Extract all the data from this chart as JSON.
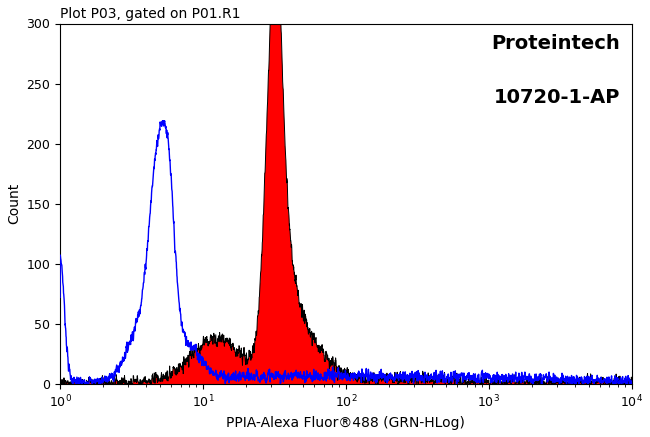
{
  "title": "Plot P03, gated on P01.R1",
  "xlabel": "PPIA-Alexa Fluor®488 (GRN-HLog)",
  "ylabel": "Count",
  "watermark_line1": "Proteintech",
  "watermark_line2": "10720-1-AP",
  "xlim_log": [
    1,
    10000
  ],
  "ylim": [
    0,
    300
  ],
  "yticks": [
    0,
    50,
    100,
    150,
    200,
    250,
    300
  ],
  "background_color": "#ffffff",
  "plot_bg_color": "#ffffff",
  "blue_color": "#0000ff",
  "red_color": "#ff0000",
  "black_color": "#000000"
}
